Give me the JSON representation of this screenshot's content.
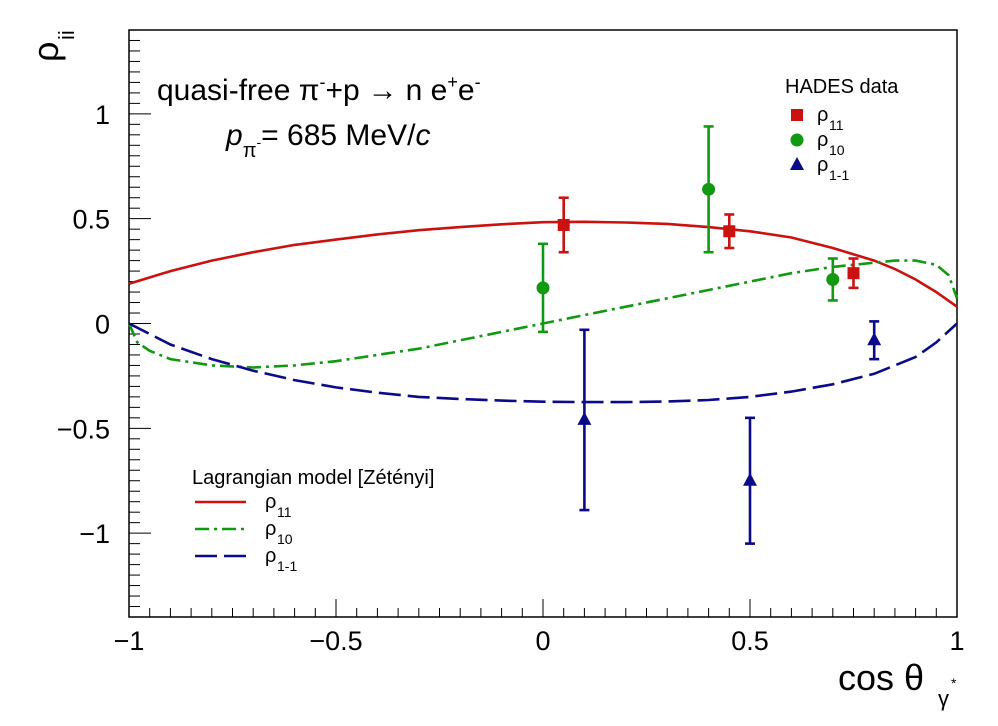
{
  "chart_data": {
    "type": "scatter",
    "title": "",
    "xlabel": "cos θ",
    "xlabel_sub": "γ",
    "xlabel_sup": "*",
    "ylabel": "ρ",
    "ylabel_sub": "ii",
    "xlim": [
      -1,
      1
    ],
    "ylim": [
      -1.4,
      1.4
    ],
    "x_ticks": [
      -1,
      -0.5,
      0,
      0.5,
      1
    ],
    "x_tick_labels": [
      "−1",
      "−0.5",
      "0",
      "0.5",
      "1"
    ],
    "y_ticks": [
      -1,
      -0.5,
      0,
      0.5,
      1
    ],
    "y_tick_labels": [
      "−1",
      "−0.5",
      "0",
      "0.5",
      "1"
    ],
    "annotation": {
      "prefix": "quasi-free π",
      "pi_charge": "-",
      "plus_p": "+p",
      "arrow": "→",
      "n": "n e",
      "e_plus": "+",
      "e": "e",
      "e_minus": "-",
      "momentum_symbol": "p",
      "momentum_sub": "π",
      "momentum_sub_charge": "-",
      "momentum_value": "= 685 MeV/",
      "momentum_c": "c"
    },
    "data_legend": {
      "title": "HADES data",
      "items": [
        {
          "symbol": "ρ",
          "sub": "11",
          "marker": "square",
          "color": "#cc1111"
        },
        {
          "symbol": "ρ",
          "sub": "10",
          "marker": "circle",
          "color": "#119911"
        },
        {
          "symbol": "ρ",
          "sub": "1-1",
          "marker": "triangle",
          "color": "#0b0b8a"
        }
      ]
    },
    "model_legend": {
      "title": "Lagrangian model [Zétényi]",
      "items": [
        {
          "symbol": "ρ",
          "sub": "11",
          "style": "solid",
          "color": "#cc1111"
        },
        {
          "symbol": "ρ",
          "sub": "10",
          "style": "dashdot",
          "color": "#119911"
        },
        {
          "symbol": "ρ",
          "sub": "1-1",
          "style": "longdash",
          "color": "#0b0b8a"
        }
      ]
    },
    "data_series": [
      {
        "name": "rho11",
        "color": "#cc1111",
        "marker": "square",
        "points": [
          {
            "x": 0.05,
            "y": 0.47,
            "yerr_low": 0.13,
            "yerr_high": 0.13
          },
          {
            "x": 0.45,
            "y": 0.44,
            "yerr_low": 0.08,
            "yerr_high": 0.08
          },
          {
            "x": 0.75,
            "y": 0.24,
            "yerr_low": 0.07,
            "yerr_high": 0.07
          }
        ]
      },
      {
        "name": "rho10",
        "color": "#119911",
        "marker": "circle",
        "points": [
          {
            "x": 0.0,
            "y": 0.17,
            "yerr_low": 0.21,
            "yerr_high": 0.21
          },
          {
            "x": 0.4,
            "y": 0.64,
            "yerr_low": 0.3,
            "yerr_high": 0.3
          },
          {
            "x": 0.7,
            "y": 0.21,
            "yerr_low": 0.1,
            "yerr_high": 0.1
          }
        ]
      },
      {
        "name": "rho1-1",
        "color": "#0b0b8a",
        "marker": "triangle",
        "points": [
          {
            "x": 0.1,
            "y": -0.46,
            "yerr_low": 0.43,
            "yerr_high": 0.43
          },
          {
            "x": 0.5,
            "y": -0.75,
            "yerr_low": 0.3,
            "yerr_high": 0.3
          },
          {
            "x": 0.8,
            "y": -0.08,
            "yerr_low": 0.09,
            "yerr_high": 0.09
          }
        ]
      }
    ],
    "model_series": [
      {
        "name": "rho11 model",
        "color": "#cc1111",
        "style": "solid",
        "x": [
          -1,
          -0.9,
          -0.8,
          -0.7,
          -0.6,
          -0.5,
          -0.4,
          -0.3,
          -0.2,
          -0.1,
          0,
          0.1,
          0.2,
          0.3,
          0.4,
          0.5,
          0.6,
          0.7,
          0.8,
          0.85,
          0.9,
          0.95,
          1.0
        ],
        "y": [
          0.19,
          0.25,
          0.3,
          0.34,
          0.375,
          0.4,
          0.425,
          0.445,
          0.46,
          0.473,
          0.483,
          0.485,
          0.482,
          0.475,
          0.46,
          0.44,
          0.41,
          0.36,
          0.3,
          0.26,
          0.21,
          0.15,
          0.08
        ]
      },
      {
        "name": "rho10 model",
        "color": "#119911",
        "style": "dashdot",
        "x": [
          -1,
          -0.98,
          -0.95,
          -0.9,
          -0.8,
          -0.7,
          -0.6,
          -0.5,
          -0.4,
          -0.3,
          -0.2,
          -0.1,
          0,
          0.1,
          0.2,
          0.3,
          0.4,
          0.5,
          0.6,
          0.7,
          0.8,
          0.85,
          0.9,
          0.95,
          0.98,
          1.0
        ],
        "y": [
          0,
          -0.09,
          -0.13,
          -0.17,
          -0.2,
          -0.21,
          -0.2,
          -0.18,
          -0.15,
          -0.12,
          -0.08,
          -0.04,
          0.0,
          0.04,
          0.08,
          0.12,
          0.16,
          0.2,
          0.24,
          0.27,
          0.29,
          0.3,
          0.3,
          0.28,
          0.23,
          0.12
        ]
      },
      {
        "name": "rho1-1 model",
        "color": "#0b0b8a",
        "style": "longdash",
        "x": [
          -1,
          -0.9,
          -0.8,
          -0.7,
          -0.6,
          -0.5,
          -0.4,
          -0.3,
          -0.2,
          -0.1,
          0,
          0.1,
          0.2,
          0.3,
          0.4,
          0.5,
          0.6,
          0.7,
          0.8,
          0.9,
          0.95,
          1.0
        ],
        "y": [
          0.0,
          -0.1,
          -0.17,
          -0.225,
          -0.27,
          -0.305,
          -0.33,
          -0.35,
          -0.36,
          -0.368,
          -0.373,
          -0.375,
          -0.375,
          -0.372,
          -0.365,
          -0.35,
          -0.325,
          -0.29,
          -0.24,
          -0.16,
          -0.09,
          0.0
        ]
      }
    ]
  }
}
